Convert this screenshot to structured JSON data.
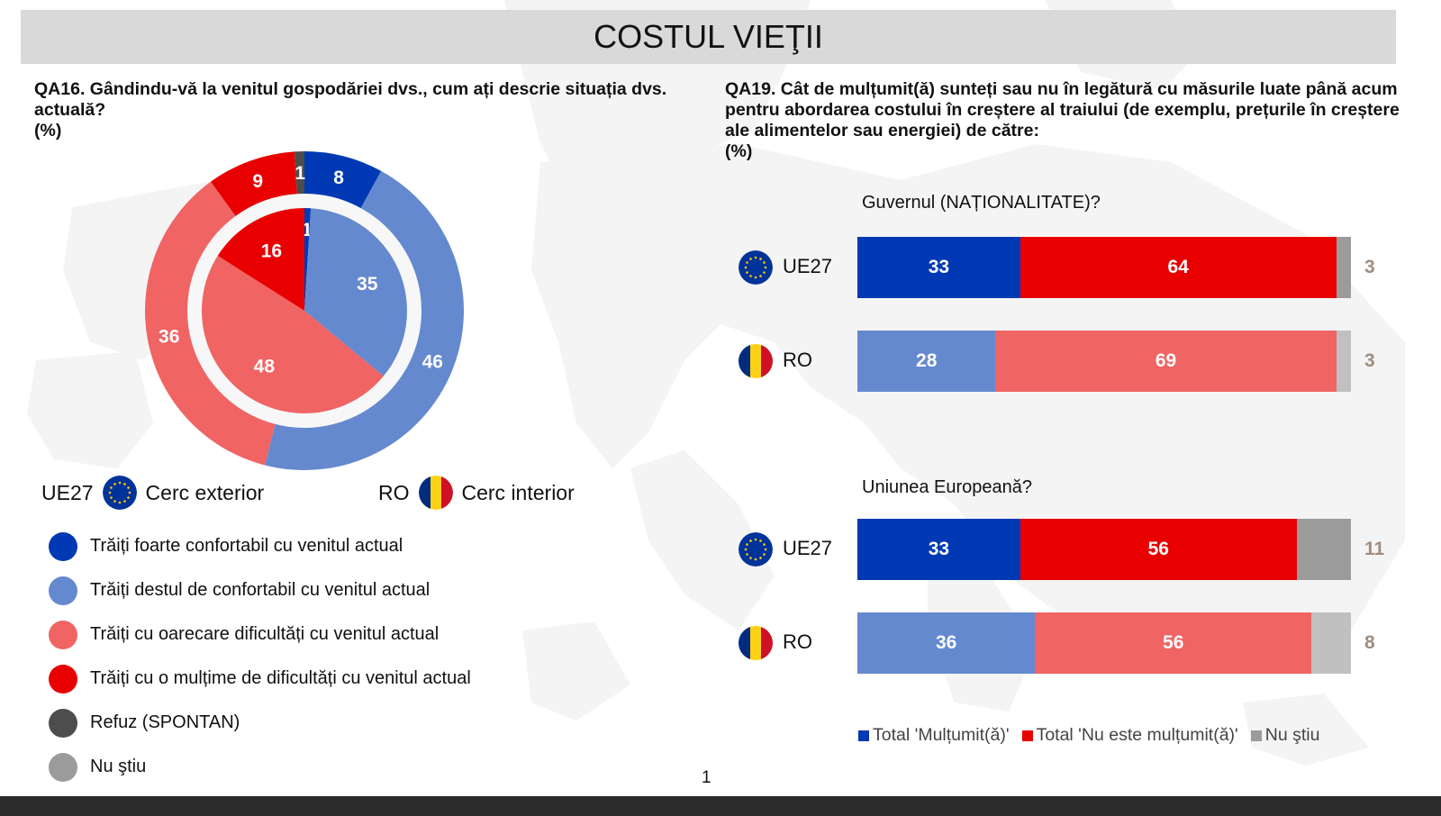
{
  "page": {
    "title": "COSTUL VIEŢII",
    "page_number": "1"
  },
  "colors": {
    "very_comfortable": "#0039b3",
    "fairly_comfortable": "#6589cf",
    "some_difficulty": "#f06464",
    "great_difficulty": "#e80000",
    "refusal": "#4d4d4d",
    "dont_know": "#9b9b9b",
    "dont_know_light": "#c0c0c0",
    "satisfied": "#0039b3",
    "satisfied_light": "#6589cf",
    "not_satisfied": "#e80000",
    "not_satisfied_light": "#f06464",
    "outside_label": "#a08c7d"
  },
  "chart_data": [
    {
      "type": "pie",
      "variant": "nested-donut",
      "title": "QA16. Gândindu-vă la venitul gospodăriei dvs., cum ați descrie situația dvs. actuală?",
      "unit": "(%)",
      "categories": [
        "Trăiți foarte confortabil cu venitul actual",
        "Trăiți destul de confortabil cu venitul actual",
        "Trăiți cu oarecare dificultăți cu venitul actual",
        "Trăiți cu o mulțime de dificultăți cu venitul actual",
        "Refuz (SPONTAN)",
        "Nu ştiu"
      ],
      "series": [
        {
          "name": "UE27",
          "ring": "Cerc exterior",
          "values": [
            8,
            46,
            36,
            9,
            1,
            0
          ]
        },
        {
          "name": "RO",
          "ring": "Cerc interior",
          "values": [
            1,
            35,
            48,
            16,
            0,
            0
          ]
        }
      ],
      "ring_legend": [
        {
          "code": "UE27",
          "label": "Cerc exterior",
          "flag": "eu-flag-icon"
        },
        {
          "code": "RO",
          "label": "Cerc interior",
          "flag": "ro-flag-icon"
        }
      ]
    },
    {
      "type": "bar",
      "variant": "stacked-horizontal-100",
      "title": "QA19. Cât de mulțumit(ă) sunteți sau nu în legătură cu măsurile luate până acum pentru abordarea costului în creștere al traiului (de exemplu, prețurile în creștere ale alimentelor sau energiei) de către:",
      "unit": "(%)",
      "legend": [
        "Total 'Mulțumit(ă)'",
        "Total 'Nu este mulțumit(ă)'",
        "Nu ştiu"
      ],
      "groups": [
        {
          "label": "Guvernul (NAȚIONALITATE)?",
          "rows": [
            {
              "label": "UE27",
              "flag": "eu-flag-icon",
              "values": [
                33,
                64,
                3
              ]
            },
            {
              "label": "RO",
              "flag": "ro-flag-icon",
              "values": [
                28,
                69,
                3
              ]
            }
          ]
        },
        {
          "label": "Uniunea Europeană?",
          "rows": [
            {
              "label": "UE27",
              "flag": "eu-flag-icon",
              "values": [
                33,
                56,
                11
              ]
            },
            {
              "label": "RO",
              "flag": "ro-flag-icon",
              "values": [
                36,
                56,
                8
              ]
            }
          ]
        }
      ],
      "xlim": [
        0,
        100
      ]
    }
  ],
  "q16": {
    "title": "QA16. Gândindu-vă la venitul gospodăriei dvs., cum ați descrie situația dvs. actuală?",
    "unit": "(%)"
  },
  "q19": {
    "title": "QA19. Cât de mulțumit(ă) sunteți sau nu în legătură cu măsurile luate până acum pentru abordarea costului în creștere al traiului (de exemplu, prețurile în creștere ale alimentelor sau energiei) de către:",
    "unit": "(%)"
  }
}
